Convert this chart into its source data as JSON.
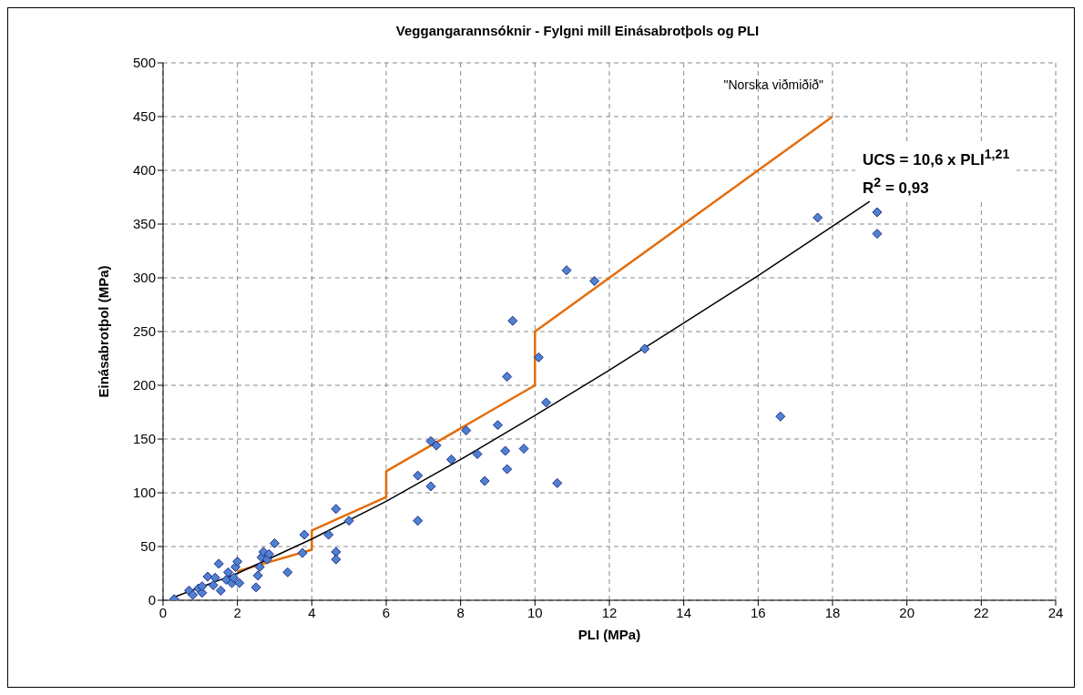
{
  "chart_data": {
    "type": "scatter",
    "title": "Veggangarannsóknir -  Fylgni mill Einásabrotþols og PLI",
    "xlabel": "PLI (MPa)",
    "ylabel": "Einásabrotþol (MPa)",
    "xlim": [
      0,
      24
    ],
    "xticks": [
      0,
      2,
      4,
      6,
      8,
      10,
      12,
      14,
      16,
      18,
      20,
      22,
      24
    ],
    "ylim": [
      0,
      500
    ],
    "yticks": [
      0,
      50,
      100,
      150,
      200,
      250,
      300,
      350,
      400,
      450,
      500
    ],
    "grid": true,
    "legend": false,
    "annotations": [
      "UCS = 10,6 x PLI$^{1,21}$",
      "R$^{2}$ = 0,93"
    ],
    "series": [
      {
        "marker": "diamond",
        "color": "#4f81d0",
        "x": [
          0.3,
          0.7,
          0.8,
          0.95,
          1.05,
          1.05,
          1.2,
          1.35,
          1.4,
          1.5,
          1.55,
          1.7,
          1.75,
          1.85,
          1.9,
          1.95,
          2.0,
          2.05,
          2.5,
          2.55,
          2.6,
          2.65,
          2.7,
          2.8,
          2.85,
          3.0,
          3.35,
          3.75,
          3.8,
          4.45,
          4.65,
          4.65,
          4.65,
          5.0,
          6.85,
          6.85,
          7.2,
          7.2,
          7.35,
          7.75,
          8.15,
          8.45,
          8.65,
          9.0,
          9.2,
          9.25,
          9.25,
          9.4,
          9.7,
          10.1,
          10.3,
          10.6,
          10.85,
          11.6,
          12.95,
          16.6,
          17.6,
          19.2,
          19.2
        ],
        "values": [
          1,
          9,
          5,
          11,
          7,
          13,
          22,
          14,
          21,
          34,
          9,
          19,
          26,
          16,
          21,
          31,
          36,
          16,
          12,
          23,
          31,
          40,
          45,
          38,
          43,
          53,
          26,
          44,
          61,
          61,
          45,
          38,
          85,
          74,
          74,
          116,
          106,
          148,
          144,
          131,
          158,
          136,
          111,
          163,
          139,
          122,
          208,
          260,
          141,
          226,
          184,
          109,
          307,
          297,
          234,
          171,
          356,
          361,
          341
        ]
      },
      {
        "type": "line",
        "color": "#e46c0a",
        "name": "\"Norska viðmiðið\"",
        "marker": "none",
        "x": [
          2,
          4,
          4,
          6,
          6,
          10,
          10,
          18
        ],
        "values": [
          27,
          47,
          65,
          96,
          120,
          200,
          250,
          450
        ]
      },
      {
        "type": "line",
        "color": "#000000",
        "marker": "none",
        "x": [
          0.3,
          2,
          4,
          6,
          8,
          10,
          12,
          14,
          16,
          18,
          19
        ],
        "values": [
          3,
          25,
          57,
          92,
          131,
          172,
          214,
          258,
          302,
          348,
          371
        ]
      }
    ]
  }
}
